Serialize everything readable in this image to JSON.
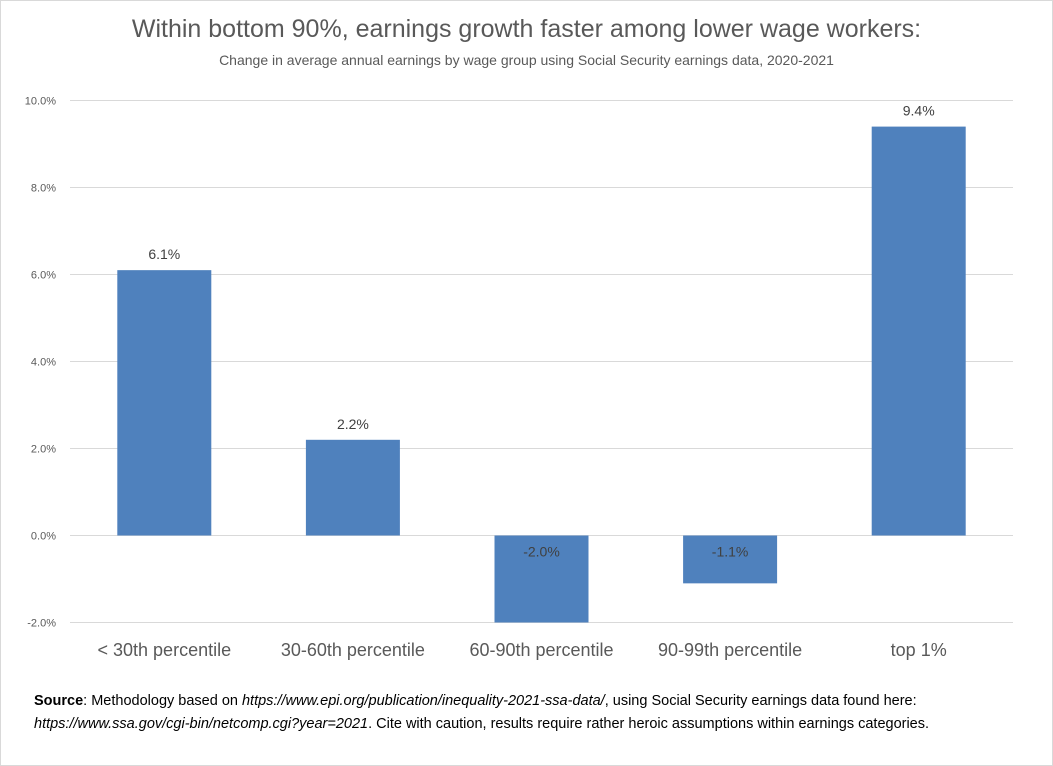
{
  "chart_data": {
    "type": "bar",
    "title": "Within bottom 90%, earnings growth faster among lower wage workers:",
    "subtitle": "Change in average annual earnings by wage group using Social Security earnings data, 2020-2021",
    "categories": [
      "< 30th percentile",
      "30-60th percentile",
      "60-90th percentile",
      "90-99th percentile",
      "top 1%"
    ],
    "values": [
      6.1,
      2.2,
      -2.0,
      -1.1,
      9.4
    ],
    "data_labels": [
      "6.1%",
      "2.2%",
      "-2.0%",
      "-1.1%",
      "9.4%"
    ],
    "y_ticks": [
      -2.0,
      0.0,
      2.0,
      4.0,
      6.0,
      8.0,
      10.0
    ],
    "y_tick_labels": [
      "-2.0%",
      "0.0%",
      "2.0%",
      "4.0%",
      "6.0%",
      "8.0%",
      "10.0%"
    ],
    "ylim": [
      -2.0,
      10.0
    ],
    "xlabel": "",
    "ylabel": "",
    "grid": true,
    "legend": "none",
    "bar_color": "#4f81bd",
    "grid_color": "#d9d9d9"
  },
  "source": {
    "label": "Source",
    "text1": ": Methodology based on ",
    "url1": "https://www.epi.org/publication/inequality-2021-ssa-data/",
    "text2": ", using Social Security earnings data found here:",
    "url2": "https://www.ssa.gov/cgi-bin/netcomp.cgi?year=2021",
    "text3": ". Cite with caution, results require rather heroic assumptions within earnings categories."
  }
}
